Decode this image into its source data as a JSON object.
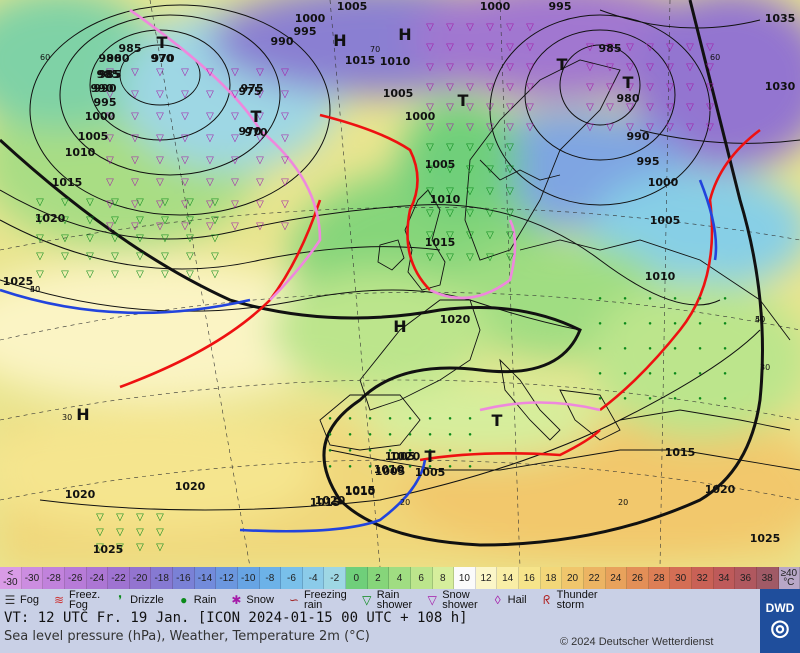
{
  "map": {
    "pressure_labels": [
      "1005",
      "1000",
      "995",
      "1000",
      "995",
      "990",
      "985",
      "975",
      "970",
      "980",
      "985",
      "990",
      "995",
      "1000",
      "1005",
      "1010",
      "1015",
      "1020",
      "1025",
      "1000",
      "1005",
      "1010",
      "1015",
      "1020",
      "1005",
      "1010",
      "1015",
      "1020",
      "1025",
      "1030",
      "1035",
      "985",
      "990",
      "995",
      "1000",
      "1005",
      "1010",
      "1015",
      "1020",
      "1005",
      "1010",
      "1015",
      "1020",
      "1025",
      "1020",
      "1020",
      "1015",
      "1010",
      "1005",
      "970",
      "975",
      "980",
      "985",
      "990"
    ],
    "centers": [
      {
        "type": "T",
        "value": "970"
      },
      {
        "type": "H",
        "value": ""
      },
      {
        "type": "H",
        "value": ""
      },
      {
        "type": "T",
        "value": "970"
      },
      {
        "type": "T",
        "value": ""
      },
      {
        "type": "T",
        "value": ""
      },
      {
        "type": "T",
        "value": "980"
      },
      {
        "type": "H",
        "value": ""
      },
      {
        "type": "H",
        "value": ""
      },
      {
        "type": "T",
        "value": "1005"
      },
      {
        "type": "T",
        "value": ""
      }
    ],
    "lat_labels": [
      "60",
      "70",
      "60",
      "50",
      "50",
      "40",
      "40",
      "30",
      "30",
      "20",
      "20"
    ]
  },
  "temp_scale": [
    {
      "label": "<\n-30",
      "color": "#d99be6"
    },
    {
      "label": "-30",
      "color": "#cc8de0"
    },
    {
      "label": "-28",
      "color": "#c182dc"
    },
    {
      "label": "-26",
      "color": "#b77bd8"
    },
    {
      "label": "-24",
      "color": "#ac76d4"
    },
    {
      "label": "-22",
      "color": "#9f73d1"
    },
    {
      "label": "-20",
      "color": "#9374d0"
    },
    {
      "label": "-18",
      "color": "#8679d2"
    },
    {
      "label": "-16",
      "color": "#7a81d6"
    },
    {
      "label": "-14",
      "color": "#728bdb"
    },
    {
      "label": "-12",
      "color": "#6b97df"
    },
    {
      "label": "-10",
      "color": "#67a4e4"
    },
    {
      "label": "-8",
      "color": "#6cb2e8"
    },
    {
      "label": "-6",
      "color": "#79c0ea"
    },
    {
      "label": "-4",
      "color": "#8bcbe9"
    },
    {
      "label": "-2",
      "color": "#9ed7e4"
    },
    {
      "label": "0",
      "color": "#6fcf7a"
    },
    {
      "label": "2",
      "color": "#86d57a"
    },
    {
      "label": "4",
      "color": "#a0dd82"
    },
    {
      "label": "6",
      "color": "#bce58c"
    },
    {
      "label": "8",
      "color": "#d6ee9c"
    },
    {
      "label": "10",
      "color": "#fbfbfb"
    },
    {
      "label": "12",
      "color": "#fbf6c8"
    },
    {
      "label": "14",
      "color": "#f9eea6"
    },
    {
      "label": "16",
      "color": "#f6e48a"
    },
    {
      "label": "18",
      "color": "#f3d779"
    },
    {
      "label": "20",
      "color": "#f0c66c"
    },
    {
      "label": "22",
      "color": "#ecb463"
    },
    {
      "label": "24",
      "color": "#e8a25c"
    },
    {
      "label": "26",
      "color": "#e38f57"
    },
    {
      "label": "28",
      "color": "#dd7e55"
    },
    {
      "label": "30",
      "color": "#d46e55"
    },
    {
      "label": "32",
      "color": "#c96156"
    },
    {
      "label": "34",
      "color": "#be5a5a"
    },
    {
      "label": "36",
      "color": "#b0585f"
    },
    {
      "label": "38",
      "color": "#a05a66"
    },
    {
      "label": "≥40\n°C",
      "color": "#b8a7c7"
    }
  ],
  "legend": [
    {
      "icon": "fog-icon",
      "glyph": "☰",
      "label": "Fog"
    },
    {
      "icon": "freezing-fog-icon",
      "glyph": "≋",
      "label": "Freez.\nFog"
    },
    {
      "icon": "drizzle-icon",
      "glyph": "❜",
      "label": "Drizzle"
    },
    {
      "icon": "rain-icon",
      "glyph": "●",
      "label": "Rain"
    },
    {
      "icon": "snow-icon",
      "glyph": "✱",
      "label": "Snow"
    },
    {
      "icon": "freezing-rain-icon",
      "glyph": "∽",
      "label": "Freezing\nrain"
    },
    {
      "icon": "rain-shower-icon",
      "glyph": "▽",
      "label": "Rain\nshower"
    },
    {
      "icon": "snow-shower-icon",
      "glyph": "▽",
      "label": "Snow\nshower"
    },
    {
      "icon": "hail-icon",
      "glyph": "◊",
      "label": "Hail"
    },
    {
      "icon": "thunderstorm-icon",
      "glyph": "ᖇ",
      "label": "Thunder\nstorm"
    }
  ],
  "footer": {
    "valid_time": "VT: 12 UTC Fr.  19 Jan. [ICON 2024-01-15  00 UTC + 108 h]",
    "description": "Sea level pressure (hPa), Weather, Temperature 2m (°C)",
    "copyright": "© 2024 Deutscher Wetterdienst",
    "logo": "DWD"
  }
}
